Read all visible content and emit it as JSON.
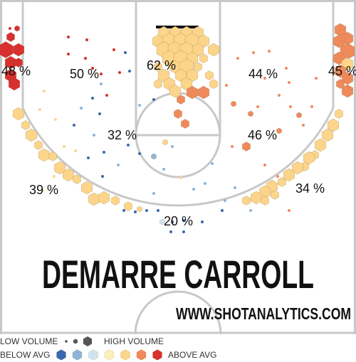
{
  "chart_data": {
    "type": "hexbin-shot-chart",
    "player": "DEMARRE CARROLL",
    "website": "WWW.SHOTANALYTICS.COM",
    "zones": [
      {
        "id": "left-corner-three",
        "label": "48 %",
        "value": 48
      },
      {
        "id": "left-midrange-baseline",
        "label": "50 %",
        "value": 50
      },
      {
        "id": "restricted-area",
        "label": "62 %",
        "value": 62
      },
      {
        "id": "right-midrange-baseline",
        "label": "44 %",
        "value": 44
      },
      {
        "id": "right-corner-three",
        "label": "45 %",
        "value": 45
      },
      {
        "id": "left-elbow",
        "label": "32 %",
        "value": 32
      },
      {
        "id": "right-elbow",
        "label": "46 %",
        "value": 46
      },
      {
        "id": "left-wing-three",
        "label": "39 %",
        "value": 39
      },
      {
        "id": "right-wing-three",
        "label": "34 %",
        "value": 34
      },
      {
        "id": "top-of-key-three",
        "label": "20 %",
        "value": 20
      }
    ],
    "legend": {
      "volume": {
        "low_label": "LOW VOLUME",
        "high_label": "HIGH VOLUME"
      },
      "efficiency": {
        "below_label": "BELOW AVG",
        "above_label": "ABOVE AVG",
        "colors": [
          "#3a68b0",
          "#8fb3d6",
          "#cfe3ef",
          "#faf0b8",
          "#fcd58a",
          "#ef8a5a",
          "#d7302e"
        ]
      }
    }
  }
}
